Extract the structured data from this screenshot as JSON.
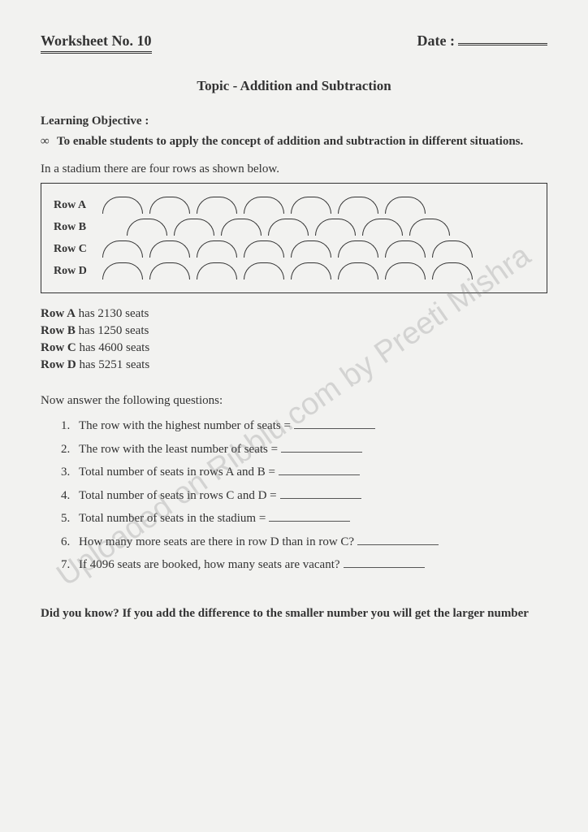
{
  "header": {
    "worksheet_label": "Worksheet No. 10",
    "date_label": "Date :"
  },
  "topic": "Topic - Addition and Subtraction",
  "objective": {
    "label": "Learning Objective :",
    "text": "To enable students to apply the concept of addition and subtraction in different situations."
  },
  "intro": "In a stadium there are four rows as shown below.",
  "rows": {
    "a": {
      "label": "Row A",
      "count": 7,
      "offset": false
    },
    "b": {
      "label": "Row B",
      "count": 7,
      "offset": true
    },
    "c": {
      "label": "Row C",
      "count": 8,
      "offset": false
    },
    "d": {
      "label": "Row D",
      "count": 8,
      "offset": false
    }
  },
  "seat_info": [
    {
      "label": "Row A",
      "text": " has 2130 seats"
    },
    {
      "label": "Row B",
      "text": " has 1250 seats"
    },
    {
      "label": "Row C",
      "text": " has 4600 seats"
    },
    {
      "label": "Row D",
      "text": " has 5251 seats"
    }
  ],
  "questions_intro": "Now answer the following questions:",
  "questions": [
    "The row with the highest number of seats =",
    "The row with the least number of seats =",
    "Total number of seats in rows A and B =",
    "Total number of seats in rows C and D =",
    "Total number of seats in the stadium =",
    "How many more seats are there in row D than in row C?",
    "If 4096 seats are booked, how many seats are vacant?"
  ],
  "did_you_know": "Did you know? If you add the difference to the smaller number you will get the larger number",
  "watermark": "Uploaded on Ribblu.com by Preeti Mishra",
  "colors": {
    "background": "#f2f2f0",
    "text": "#333333",
    "border": "#333333"
  }
}
